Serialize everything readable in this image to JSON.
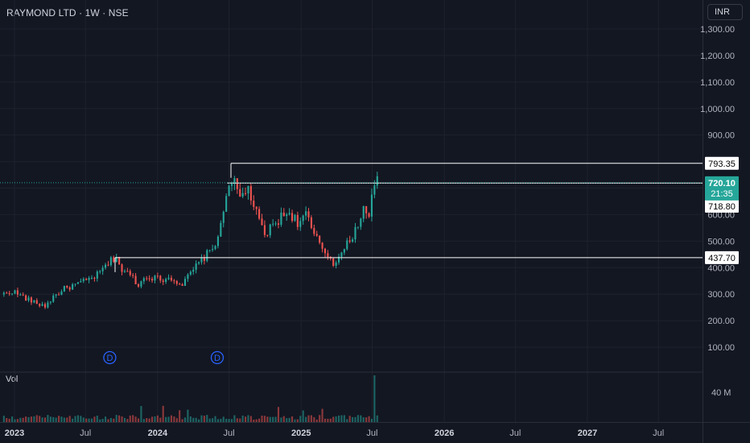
{
  "header": {
    "title": "RAYMOND LTD · 1W · NSE",
    "currency_button": "INR"
  },
  "volume": {
    "label": "Vol"
  },
  "colors": {
    "up": "#26a69a",
    "down": "#ef5350",
    "background": "#131722",
    "event_marker": "#2962ff"
  },
  "chart_data": {
    "type": "candlestick",
    "interval": "1W",
    "y_axis": {
      "ticks": [
        "1,300.00",
        "1,200.00",
        "1,100.00",
        "1,000.00",
        "900.00",
        "600.00",
        "500.00",
        "400.00",
        "300.00",
        "200.00",
        "100.00"
      ],
      "tick_values": [
        1300,
        1200,
        1100,
        1000,
        900,
        600,
        500,
        400,
        300,
        200,
        100
      ]
    },
    "x_axis": {
      "ticks": [
        "2023",
        "Jul",
        "2024",
        "Jul",
        "2025",
        "Jul",
        "2026",
        "Jul",
        "2027",
        "Jul"
      ],
      "tick_dates": [
        "2023-01",
        "2023-07",
        "2024-01",
        "2024-07",
        "2025-01",
        "2025-07",
        "2026-01",
        "2026-07",
        "2027-01",
        "2027-07"
      ]
    },
    "horizontal_levels": [
      {
        "value": 793.35,
        "label": "793.35"
      },
      {
        "value": 718.8,
        "label": "718.80"
      },
      {
        "value": 437.7,
        "label": "437.70"
      }
    ],
    "last_price": {
      "value": 720.1,
      "label": "720.10",
      "countdown": "21:35"
    },
    "event_markers": [
      {
        "date": "2023-09",
        "label": "D"
      },
      {
        "date": "2024-06",
        "label": "D"
      }
    ],
    "volume_axis": {
      "ticks": [
        "40 M"
      ],
      "tick_values": [
        40
      ]
    },
    "anchor_closes": [
      [
        "2022-12-05",
        300
      ],
      [
        "2022-12-26",
        312
      ],
      [
        "2023-01-23",
        290
      ],
      [
        "2023-02-20",
        268
      ],
      [
        "2023-03-20",
        255
      ],
      [
        "2023-04-10",
        290
      ],
      [
        "2023-05-08",
        320
      ],
      [
        "2023-06-05",
        335
      ],
      [
        "2023-07-03",
        350
      ],
      [
        "2023-07-31",
        372
      ],
      [
        "2023-08-28",
        415
      ],
      [
        "2023-09-18",
        445
      ],
      [
        "2023-10-02",
        385
      ],
      [
        "2023-10-23",
        375
      ],
      [
        "2023-11-13",
        335
      ],
      [
        "2023-12-04",
        370
      ],
      [
        "2024-01-08",
        355
      ],
      [
        "2024-02-05",
        362
      ],
      [
        "2024-03-04",
        335
      ],
      [
        "2024-04-01",
        392
      ],
      [
        "2024-04-29",
        440
      ],
      [
        "2024-05-20",
        470
      ],
      [
        "2024-06-10",
        550
      ],
      [
        "2024-06-24",
        680
      ],
      [
        "2024-07-08",
        740
      ],
      [
        "2024-07-29",
        660
      ],
      [
        "2024-08-19",
        700
      ],
      [
        "2024-09-09",
        600
      ],
      [
        "2024-09-30",
        520
      ],
      [
        "2024-10-21",
        560
      ],
      [
        "2024-11-11",
        590
      ],
      [
        "2024-12-02",
        610
      ],
      [
        "2024-12-23",
        570
      ],
      [
        "2025-01-13",
        600
      ],
      [
        "2025-02-03",
        520
      ],
      [
        "2025-03-03",
        460
      ],
      [
        "2025-03-24",
        420
      ],
      [
        "2025-04-14",
        450
      ],
      [
        "2025-05-05",
        505
      ],
      [
        "2025-05-26",
        560
      ],
      [
        "2025-06-09",
        640
      ],
      [
        "2025-06-23",
        580
      ],
      [
        "2025-07-07",
        735
      ],
      [
        "2025-07-14",
        720
      ]
    ]
  }
}
